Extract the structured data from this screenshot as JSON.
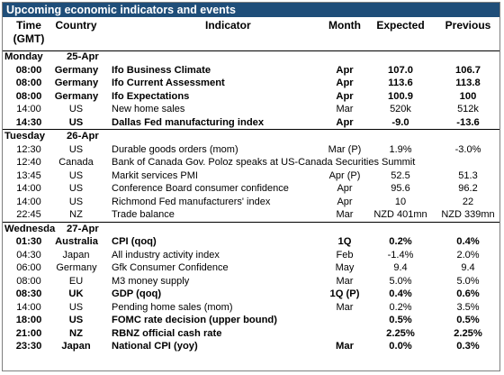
{
  "title": "Upcoming economic indicators and events",
  "headers": {
    "time": "Time",
    "time_sub": "(GMT)",
    "country": "Country",
    "indicator": "Indicator",
    "month": "Month",
    "expected": "Expected",
    "previous": "Previous"
  },
  "days": [
    {
      "name": "Monday",
      "date": "25-Apr",
      "rows": [
        {
          "time": "08:00",
          "country": "Germany",
          "indicator": "Ifo Business Climate",
          "month": "Apr",
          "expected": "107.0",
          "previous": "106.7",
          "bold": true
        },
        {
          "time": "08:00",
          "country": "Germany",
          "indicator": "Ifo Current Assessment",
          "month": "Apr",
          "expected": "113.6",
          "previous": "113.8",
          "bold": true
        },
        {
          "time": "08:00",
          "country": "Germany",
          "indicator": "Ifo Expectations",
          "month": "Apr",
          "expected": "100.9",
          "previous": "100",
          "bold": true
        },
        {
          "time": "14:00",
          "country": "US",
          "indicator": "New home sales",
          "month": "Mar",
          "expected": "520k",
          "previous": "512k",
          "bold": false
        },
        {
          "time": "14:30",
          "country": "US",
          "indicator": "Dallas Fed manufacturing index",
          "month": "Apr",
          "expected": "-9.0",
          "previous": "-13.6",
          "bold": true
        }
      ]
    },
    {
      "name": "Tuesday",
      "date": "26-Apr",
      "rows": [
        {
          "time": "12:30",
          "country": "US",
          "indicator": "Durable goods orders  (mom)",
          "month": "Mar (P)",
          "expected": "1.9%",
          "previous": "-3.0%",
          "bold": false
        },
        {
          "time": "12:40",
          "country": "Canada",
          "indicator": "Bank of Canada Gov. Poloz speaks at US-Canada Securities Summit",
          "month": "",
          "expected": "",
          "previous": "",
          "bold": false
        },
        {
          "time": "13:45",
          "country": "US",
          "indicator": "Markit services PMI",
          "month": "Apr (P)",
          "expected": "52.5",
          "previous": "51.3",
          "bold": false
        },
        {
          "time": "14:00",
          "country": "US",
          "indicator": "Conference Board consumer confidence",
          "month": "Apr",
          "expected": "95.6",
          "previous": "96.2",
          "bold": false
        },
        {
          "time": "14:00",
          "country": "US",
          "indicator": "Richmond Fed manufacturers' index",
          "month": "Apr",
          "expected": "10",
          "previous": "22",
          "bold": false
        },
        {
          "time": "22:45",
          "country": "NZ",
          "indicator": "Trade balance",
          "month": "Mar",
          "expected": "NZD 401mn",
          "previous": "NZD 339mn",
          "bold": false
        }
      ]
    },
    {
      "name": "Wednesda",
      "date": "27-Apr",
      "rows": [
        {
          "time": "01:30",
          "country": "Australia",
          "indicator": "CPI (qoq)",
          "month": "1Q",
          "expected": "0.2%",
          "previous": "0.4%",
          "bold": true
        },
        {
          "time": "04:30",
          "country": "Japan",
          "indicator": "All industry activity index",
          "month": "Feb",
          "expected": "-1.4%",
          "previous": "2.0%",
          "bold": false
        },
        {
          "time": "06:00",
          "country": "Germany",
          "indicator": "Gfk Consumer Confidence",
          "month": "May",
          "expected": "9.4",
          "previous": "9.4",
          "bold": false
        },
        {
          "time": "08:00",
          "country": "EU",
          "indicator": "M3 money supply",
          "month": "Mar",
          "expected": "5.0%",
          "previous": "5.0%",
          "bold": false
        },
        {
          "time": "08:30",
          "country": "UK",
          "indicator": "GDP (qoq)",
          "month": "1Q (P)",
          "expected": "0.4%",
          "previous": "0.6%",
          "bold": true
        },
        {
          "time": "14:00",
          "country": "US",
          "indicator": " Pending home sales (mom)",
          "month": "Mar",
          "expected": "0.2%",
          "previous": "3.5%",
          "bold": false
        },
        {
          "time": "18:00",
          "country": "US",
          "indicator": "FOMC rate decision (upper bound)",
          "month": "",
          "expected": "0.5%",
          "previous": "0.5%",
          "bold": true
        },
        {
          "time": "21:00",
          "country": "NZ",
          "indicator": "RBNZ official cash rate",
          "month": "",
          "expected": "2.25%",
          "previous": "2.25%",
          "bold": true
        },
        {
          "time": "23:30",
          "country": "Japan",
          "indicator": "National CPI (yoy)",
          "month": "Mar",
          "expected": "0.0%",
          "previous": "0.3%",
          "bold": true
        }
      ]
    }
  ]
}
